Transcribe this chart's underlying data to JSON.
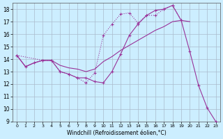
{
  "bg_color": "#cceeff",
  "grid_color": "#aabbcc",
  "line_color": "#993399",
  "xlim": [
    -0.5,
    23.5
  ],
  "ylim": [
    9,
    18.5
  ],
  "xlabel": "Windchill (Refroidissement éolien,°C)",
  "yticks": [
    9,
    10,
    11,
    12,
    13,
    14,
    15,
    16,
    17,
    18
  ],
  "xticks": [
    0,
    1,
    2,
    3,
    4,
    5,
    6,
    7,
    8,
    9,
    10,
    11,
    12,
    13,
    14,
    15,
    16,
    17,
    18,
    19,
    20,
    21,
    22,
    23
  ],
  "curve1_x": [
    0,
    1,
    2,
    3,
    4,
    5,
    6,
    7,
    8,
    9,
    10,
    11,
    12,
    13,
    14,
    15,
    16,
    17,
    18,
    19,
    20,
    21,
    22,
    23
  ],
  "curve1_y": [
    14.3,
    13.4,
    13.7,
    13.9,
    13.9,
    13.0,
    12.8,
    12.5,
    12.5,
    12.2,
    12.1,
    13.0,
    14.4,
    15.9,
    16.8,
    17.5,
    17.9,
    18.0,
    18.3,
    17.1,
    14.6,
    11.9,
    10.1,
    9.0
  ],
  "curve2_x": [
    0,
    1,
    2,
    3,
    4,
    5,
    6,
    7,
    8,
    9,
    10,
    11,
    12,
    13,
    14,
    15,
    16,
    17,
    18,
    19,
    20
  ],
  "curve2_y": [
    14.3,
    13.4,
    13.7,
    13.9,
    13.9,
    13.5,
    13.3,
    13.2,
    13.0,
    13.2,
    13.8,
    14.2,
    14.7,
    15.1,
    15.5,
    15.9,
    16.3,
    16.6,
    17.0,
    17.1,
    17.0
  ],
  "curve3_x": [
    0,
    3,
    4,
    5,
    6,
    7,
    8,
    9,
    10,
    11,
    12,
    13,
    14,
    15,
    16,
    17,
    18,
    19
  ],
  "curve3_y": [
    14.3,
    13.9,
    13.9,
    13.0,
    12.8,
    12.5,
    12.1,
    12.9,
    15.9,
    16.8,
    17.6,
    17.7,
    16.9,
    17.5,
    17.5,
    18.0,
    18.3,
    17.1
  ]
}
